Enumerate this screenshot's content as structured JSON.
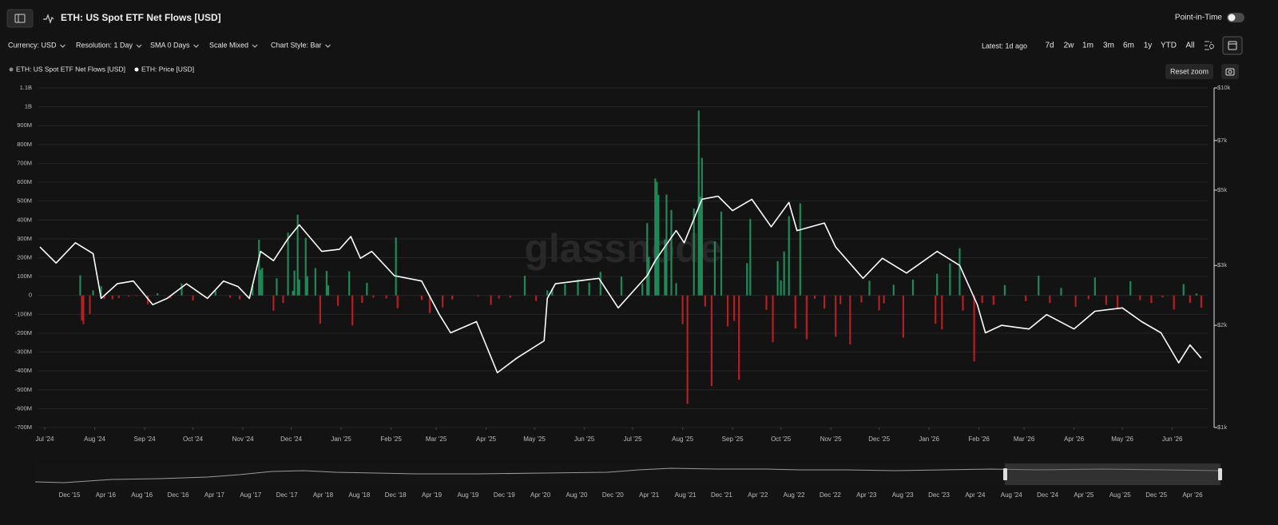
{
  "header": {
    "title": "ETH: US Spot ETF Net Flows [USD]",
    "point_in_time": "Point-in-Time"
  },
  "toolbar": {
    "options": [
      "Currency: USD",
      "Resolution: 1 Day",
      "SMA 0 Days",
      "Scale Mixed",
      "Chart Style: Bar"
    ],
    "latest": "Latest: 1d ago",
    "ranges": [
      "7d",
      "2w",
      "1m",
      "3m",
      "6m",
      "1y",
      "YTD",
      "All"
    ]
  },
  "reset_zoom": "Reset zoom",
  "watermark": "glassnode",
  "chart_data": {
    "type": "bar",
    "grid": true,
    "y2_scale": "log",
    "xlim": [
      "2024-06-27",
      "2026-06-23"
    ],
    "xticks": [
      {
        "value": "2024-07-01",
        "label": "Jul '24"
      },
      {
        "value": "2024-08-01",
        "label": "Aug '24"
      },
      {
        "value": "2024-09-01",
        "label": "Sep '24"
      },
      {
        "value": "2024-10-01",
        "label": "Oct '24"
      },
      {
        "value": "2024-11-01",
        "label": "Nov '24"
      },
      {
        "value": "2024-12-01",
        "label": "Dec '24"
      },
      {
        "value": "2025-01-01",
        "label": "Jan '25"
      },
      {
        "value": "2025-02-01",
        "label": "Feb '25"
      },
      {
        "value": "2025-03-01",
        "label": "Mar '25"
      },
      {
        "value": "2025-04-01",
        "label": "Apr '25"
      },
      {
        "value": "2025-05-01",
        "label": "May '25"
      },
      {
        "value": "2025-06-01",
        "label": "Jun '25"
      },
      {
        "value": "2025-07-01",
        "label": "Jul '25"
      },
      {
        "value": "2025-08-01",
        "label": "Aug '25"
      },
      {
        "value": "2025-09-01",
        "label": "Sep '25"
      },
      {
        "value": "2025-10-01",
        "label": "Oct '25"
      },
      {
        "value": "2025-11-01",
        "label": "Nov '25"
      },
      {
        "value": "2025-12-01",
        "label": "Dec '25"
      },
      {
        "value": "2026-01-01",
        "label": "Jan '26"
      },
      {
        "value": "2026-02-01",
        "label": "Feb '26"
      },
      {
        "value": "2026-03-01",
        "label": "Mar '26"
      },
      {
        "value": "2026-04-01",
        "label": "Apr '26"
      },
      {
        "value": "2026-05-01",
        "label": "May '26"
      },
      {
        "value": "2026-06-01",
        "label": "Jun '26"
      }
    ],
    "ylim": [
      -700000000,
      1100000000
    ],
    "yticks": [
      {
        "value": 1100000000,
        "label": "1.1B"
      },
      {
        "value": 1000000000,
        "label": "1B"
      },
      {
        "value": 900000000,
        "label": "900M"
      },
      {
        "value": 800000000,
        "label": "800M"
      },
      {
        "value": 700000000,
        "label": "700M"
      },
      {
        "value": 600000000,
        "label": "600M"
      },
      {
        "value": 500000000,
        "label": "500M"
      },
      {
        "value": 400000000,
        "label": "400M"
      },
      {
        "value": 300000000,
        "label": "300M"
      },
      {
        "value": 200000000,
        "label": "200M"
      },
      {
        "value": 100000000,
        "label": "100M"
      },
      0,
      {
        "value": -100000000,
        "label": "-100M"
      },
      {
        "value": -200000000,
        "label": "-200M"
      },
      {
        "value": -300000000,
        "label": "-300M"
      },
      {
        "value": -400000000,
        "label": "-400M"
      },
      {
        "value": -500000000,
        "label": "-500M"
      },
      {
        "value": -600000000,
        "label": "-600M"
      },
      {
        "value": -700000000,
        "label": "-700M"
      }
    ],
    "y2lim": [
      1000,
      10000
    ],
    "y2ticks": [
      {
        "value": 10000,
        "label": "$10k"
      },
      {
        "value": 7000,
        "label": "$7k"
      },
      {
        "value": 5000,
        "label": "$5k"
      },
      {
        "value": 3000,
        "label": "$3k"
      },
      {
        "value": 2000,
        "label": "$2k"
      },
      {
        "value": 1000,
        "label": "$1k"
      }
    ],
    "series": [
      {
        "name": "ETH: US Spot ETF Net Flows [USD]",
        "type": "bar",
        "legend_color": "#8a8a8a",
        "color": "#1f8a58",
        "negative_color": "#b51f22",
        "x": [
          "2024-07-23",
          "2024-07-24",
          "2024-07-25",
          "2024-07-29",
          "2024-07-31",
          "2024-08-05",
          "2024-08-07",
          "2024-08-12",
          "2024-08-16",
          "2024-08-22",
          "2024-08-27",
          "2024-09-03",
          "2024-09-09",
          "2024-09-17",
          "2024-09-24",
          "2024-10-01",
          "2024-10-08",
          "2024-10-15",
          "2024-10-24",
          "2024-10-30",
          "2024-11-05",
          "2024-11-07",
          "2024-11-11",
          "2024-11-12",
          "2024-11-13",
          "2024-11-20",
          "2024-11-22",
          "2024-11-26",
          "2024-11-29",
          "2024-12-02",
          "2024-12-03",
          "2024-12-05",
          "2024-12-06",
          "2024-12-10",
          "2024-12-11",
          "2024-12-16",
          "2024-12-19",
          "2024-12-23",
          "2024-12-24",
          "2024-12-30",
          "2025-01-06",
          "2025-01-08",
          "2025-01-14",
          "2025-01-17",
          "2025-01-21",
          "2025-01-29",
          "2025-02-04",
          "2025-02-05",
          "2025-02-20",
          "2025-02-25",
          "2025-03-05",
          "2025-03-11",
          "2025-03-27",
          "2025-04-04",
          "2025-04-09",
          "2025-04-16",
          "2025-04-25",
          "2025-05-02",
          "2025-05-09",
          "2025-05-12",
          "2025-05-20",
          "2025-05-28",
          "2025-06-04",
          "2025-06-11",
          "2025-06-24",
          "2025-07-07",
          "2025-07-10",
          "2025-07-11",
          "2025-07-15",
          "2025-07-16",
          "2025-07-17",
          "2025-07-21",
          "2025-07-22",
          "2025-07-25",
          "2025-07-28",
          "2025-08-01",
          "2025-08-04",
          "2025-08-08",
          "2025-08-11",
          "2025-08-12",
          "2025-08-13",
          "2025-08-15",
          "2025-08-19",
          "2025-08-21",
          "2025-08-25",
          "2025-08-29",
          "2025-09-02",
          "2025-09-05",
          "2025-09-10",
          "2025-09-12",
          "2025-09-22",
          "2025-09-26",
          "2025-09-29",
          "2025-10-01",
          "2025-10-03",
          "2025-10-06",
          "2025-10-10",
          "2025-10-13",
          "2025-10-17",
          "2025-10-22",
          "2025-10-28",
          "2025-11-04",
          "2025-11-07",
          "2025-11-13",
          "2025-11-20",
          "2025-11-25",
          "2025-12-01",
          "2025-12-04",
          "2025-12-10",
          "2025-12-16",
          "2025-12-22",
          "2026-01-05",
          "2026-01-06",
          "2026-01-09",
          "2026-01-14",
          "2026-01-20",
          "2026-01-22",
          "2026-01-29",
          "2026-02-03",
          "2026-02-10",
          "2026-02-17",
          "2026-03-02",
          "2026-03-10",
          "2026-03-17",
          "2026-03-24",
          "2026-04-02",
          "2026-04-10",
          "2026-04-14",
          "2026-04-21",
          "2026-04-28",
          "2026-05-06",
          "2026-05-12",
          "2026-05-19",
          "2026-05-26",
          "2026-06-02",
          "2026-06-08",
          "2026-06-12",
          "2026-06-16",
          "2026-06-19"
        ],
        "values": [
          107000000.0,
          -133000000.0,
          -152000000.0,
          -98000000.0,
          27000000.0,
          49000000.0,
          -18000000.0,
          -20000000.0,
          -14000000.0,
          -6000000.0,
          -3000000.0,
          -47000000.0,
          12000000.0,
          -15000000.0,
          63000000.0,
          -27000000.0,
          -8000000.0,
          24000000.0,
          -12000000.0,
          -21000000.0,
          -16000000.0,
          52000000.0,
          295000000.0,
          136000000.0,
          146000000.0,
          -81000000.0,
          91000000.0,
          -40000000.0,
          333000000.0,
          24000000.0,
          132000000.0,
          428000000.0,
          84000000.0,
          305000000.0,
          102000000.0,
          145000000.0,
          -150000000.0,
          130000000.0,
          53000000.0,
          -55000000.0,
          128000000.0,
          -159000000.0,
          -40000000.0,
          67000000.0,
          -12000000.0,
          -16000000.0,
          307000000.0,
          -68000000.0,
          -24000000.0,
          -93000000.0,
          -63000000.0,
          -21000000.0,
          -5000000.0,
          -50000000.0,
          -16000000.0,
          -12000000.0,
          104000000.0,
          -30000000.0,
          27000000.0,
          35000000.0,
          60000000.0,
          84000000.0,
          68000000.0,
          125000000.0,
          100000000.0,
          63000000.0,
          383000000.0,
          204000000.0,
          620000000.0,
          602000000.0,
          533000000.0,
          297000000.0,
          534000000.0,
          453000000.0,
          65000000.0,
          -152000000.0,
          -575000000.0,
          461000000.0,
          980000000.0,
          524000000.0,
          729000000.0,
          -59000000.0,
          -480000000.0,
          287000000.0,
          444000000.0,
          -164000000.0,
          -135000000.0,
          -447000000.0,
          171000000.0,
          405000000.0,
          -76000000.0,
          -248000000.0,
          182000000.0,
          80000000.0,
          233000000.0,
          420000000.0,
          -175000000.0,
          488000000.0,
          -232000000.0,
          -18000000.0,
          -70000000.0,
          -219000000.0,
          -46000000.0,
          -260000000.0,
          -37000000.0,
          78000000.0,
          -79000000.0,
          -42000000.0,
          57000000.0,
          -224000000.0,
          84000000.0,
          -150000000.0,
          115000000.0,
          -180000000.0,
          170000000.0,
          250000000.0,
          -80000000.0,
          -350000000.0,
          -40000000.0,
          -50000000.0,
          55000000.0,
          -30000000.0,
          105000000.0,
          -40000000.0,
          40000000.0,
          -60000000.0,
          -20000000.0,
          95000000.0,
          -50000000.0,
          -70000000.0,
          75000000.0,
          -25000000.0,
          -40000000.0,
          -10000000.0,
          -75000000.0,
          60000000.0,
          -40000000.0,
          10000000.0,
          -65000000.0
        ]
      },
      {
        "name": "ETH: Price [USD]",
        "type": "line",
        "axis": "y2",
        "color": "#ffffff",
        "x": [
          "2024-06-28",
          "2024-07-08",
          "2024-07-20",
          "2024-07-31",
          "2024-08-05",
          "2024-08-15",
          "2024-08-25",
          "2024-09-06",
          "2024-09-15",
          "2024-09-27",
          "2024-10-10",
          "2024-10-20",
          "2024-10-29",
          "2024-11-05",
          "2024-11-12",
          "2024-11-20",
          "2024-11-29",
          "2024-12-06",
          "2024-12-20",
          "2024-12-31",
          "2025-01-07",
          "2025-01-13",
          "2025-01-20",
          "2025-02-03",
          "2025-02-20",
          "2025-03-03",
          "2025-03-10",
          "2025-03-26",
          "2025-04-08",
          "2025-04-20",
          "2025-05-07",
          "2025-05-09",
          "2025-05-14",
          "2025-06-10",
          "2025-06-22",
          "2025-07-10",
          "2025-07-15",
          "2025-07-28",
          "2025-08-02",
          "2025-08-13",
          "2025-08-23",
          "2025-09-01",
          "2025-09-13",
          "2025-09-25",
          "2025-10-06",
          "2025-10-11",
          "2025-10-28",
          "2025-11-04",
          "2025-11-21",
          "2025-12-03",
          "2025-12-18",
          "2026-01-06",
          "2026-01-20",
          "2026-01-31",
          "2026-02-05",
          "2026-02-15",
          "2026-03-04",
          "2026-03-15",
          "2026-04-01",
          "2026-04-14",
          "2026-05-01",
          "2026-05-13",
          "2026-05-25",
          "2026-06-05",
          "2026-06-12",
          "2026-06-19"
        ],
        "values": [
          3400,
          3050,
          3500,
          3250,
          2400,
          2650,
          2700,
          2300,
          2400,
          2650,
          2400,
          2700,
          2600,
          2400,
          3300,
          3100,
          3600,
          3950,
          3300,
          3350,
          3650,
          3150,
          3300,
          2800,
          2700,
          2150,
          1900,
          2050,
          1450,
          1600,
          1800,
          2400,
          2650,
          2750,
          2250,
          2800,
          3100,
          3800,
          3500,
          4700,
          4800,
          4350,
          4700,
          3900,
          4600,
          3800,
          4000,
          3400,
          2750,
          3150,
          2850,
          3300,
          3000,
          2300,
          1900,
          2000,
          1950,
          2150,
          1950,
          2200,
          2250,
          2050,
          1900,
          1550,
          1750,
          1600
        ]
      }
    ]
  },
  "navigator": {
    "xticks": [
      "Dec '15",
      "Apr '16",
      "Aug '16",
      "Dec '16",
      "Apr '17",
      "Aug '17",
      "Dec '17",
      "Apr '18",
      "Aug '18",
      "Dec '18",
      "Apr '19",
      "Aug '19",
      "Dec '19",
      "Apr '20",
      "Aug '20",
      "Dec '20",
      "Apr '21",
      "Aug '21",
      "Dec '21",
      "Apr '22",
      "Aug '22",
      "Dec '22",
      "Apr '23",
      "Aug '23",
      "Dec '23",
      "Apr '24",
      "Aug '24",
      "Dec '24",
      "Apr '25",
      "Aug '25",
      "Dec '25",
      "Apr '26"
    ]
  }
}
